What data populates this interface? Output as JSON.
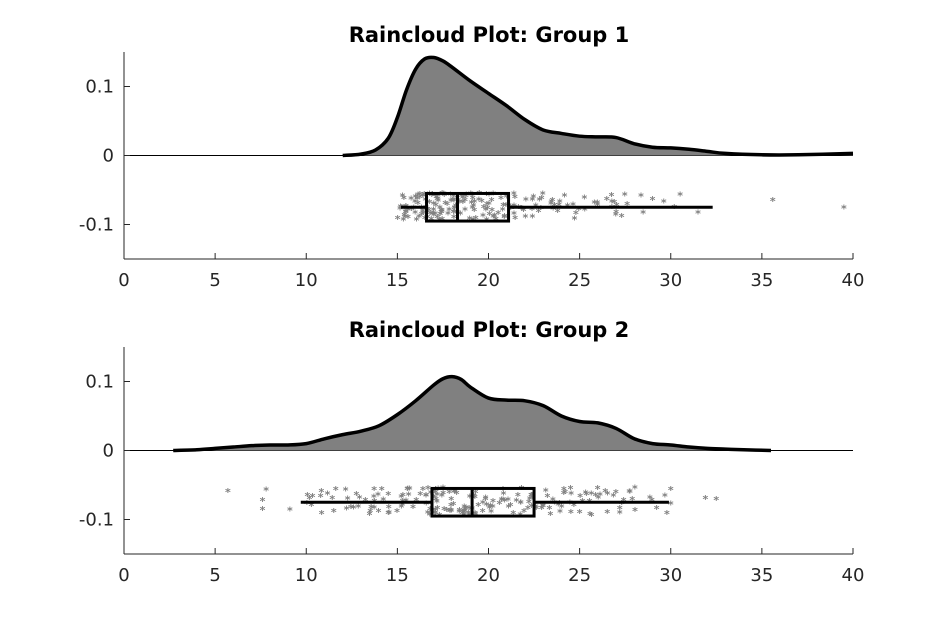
{
  "chart_data": [
    {
      "type": "raincloud",
      "title": "Raincloud Plot: Group 1",
      "xlim": [
        0,
        40
      ],
      "ylim": [
        -0.15,
        0.15
      ],
      "xticks": [
        0,
        5,
        10,
        15,
        20,
        25,
        30,
        35,
        40
      ],
      "yticks": [
        0.1,
        0,
        -0.1
      ],
      "ytick_labels": [
        "0.1",
        "0",
        "-0.1"
      ],
      "colors": {
        "fill": "#808080",
        "outline": "#000000",
        "points": "#808080"
      },
      "density": {
        "x": [
          12,
          13,
          13.8,
          14.5,
          15,
          15.5,
          16,
          16.5,
          17,
          17.5,
          18,
          19,
          20,
          21,
          22,
          23,
          24,
          25,
          26,
          27,
          28,
          29,
          30,
          31,
          32,
          33,
          35,
          37,
          40
        ],
        "y": [
          0,
          0.002,
          0.008,
          0.025,
          0.055,
          0.095,
          0.125,
          0.14,
          0.142,
          0.137,
          0.128,
          0.108,
          0.09,
          0.072,
          0.052,
          0.037,
          0.032,
          0.028,
          0.027,
          0.026,
          0.017,
          0.012,
          0.011,
          0.009,
          0.006,
          0.003,
          0.001,
          0.001,
          0.003
        ]
      },
      "box": {
        "whisker_low": 15.2,
        "q1": 16.6,
        "median": 18.3,
        "q3": 21.1,
        "whisker_high": 32.3,
        "y": -0.075,
        "height": 0.04
      },
      "points_range": [
        15,
        33
      ],
      "outliers": [
        {
          "x": 35.6,
          "y": -0.066
        },
        {
          "x": 39.5,
          "y": -0.077
        }
      ],
      "jitter_y": [
        -0.095,
        -0.055
      ]
    },
    {
      "type": "raincloud",
      "title": "Raincloud Plot: Group 2",
      "xlim": [
        0,
        40
      ],
      "ylim": [
        -0.15,
        0.15
      ],
      "xticks": [
        0,
        5,
        10,
        15,
        20,
        25,
        30,
        35,
        40
      ],
      "yticks": [
        0.1,
        0,
        -0.1
      ],
      "ytick_labels": [
        "0.1",
        "0",
        "-0.1"
      ],
      "colors": {
        "fill": "#808080",
        "outline": "#000000",
        "points": "#808080"
      },
      "density": {
        "x": [
          2.7,
          4,
          5,
          6,
          7,
          8,
          9,
          10,
          11,
          12,
          13,
          14,
          15,
          16,
          17,
          17.5,
          18,
          18.5,
          19,
          20,
          21,
          22,
          23,
          24,
          25,
          26,
          27,
          28,
          29,
          30,
          31,
          32,
          33,
          34,
          35.5
        ],
        "y": [
          0,
          0.001,
          0.003,
          0.005,
          0.007,
          0.008,
          0.008,
          0.01,
          0.017,
          0.023,
          0.028,
          0.036,
          0.052,
          0.072,
          0.095,
          0.104,
          0.107,
          0.103,
          0.092,
          0.076,
          0.073,
          0.072,
          0.065,
          0.05,
          0.042,
          0.04,
          0.032,
          0.017,
          0.01,
          0.008,
          0.005,
          0.003,
          0.002,
          0.001,
          0
        ]
      },
      "box": {
        "whisker_low": 9.7,
        "q1": 16.9,
        "median": 19.1,
        "q3": 22.5,
        "whisker_high": 29.9,
        "y": -0.075,
        "height": 0.04
      },
      "points_range": [
        10,
        30
      ],
      "outliers": [
        {
          "x": 5.7,
          "y": -0.06
        },
        {
          "x": 7.6,
          "y": -0.073
        },
        {
          "x": 7.8,
          "y": -0.058
        },
        {
          "x": 7.6,
          "y": -0.086
        },
        {
          "x": 9.1,
          "y": -0.087
        },
        {
          "x": 30,
          "y": -0.078
        },
        {
          "x": 30,
          "y": -0.057
        },
        {
          "x": 31.9,
          "y": -0.07
        },
        {
          "x": 32.5,
          "y": -0.072
        }
      ],
      "jitter_y": [
        -0.095,
        -0.055
      ]
    }
  ]
}
